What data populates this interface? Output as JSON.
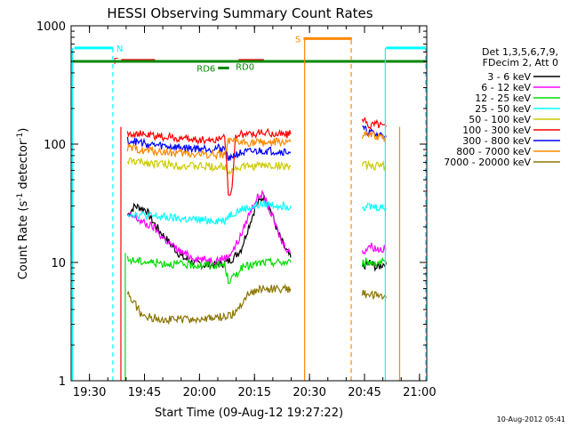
{
  "chart_data": {
    "type": "line",
    "title": "HESSI Observing Summary Count Rates",
    "xlabel": "Start Time (09-Aug-12 19:27:22)",
    "ylabel_main": "Count Rate (s",
    "ylabel_sup1": "-1",
    "ylabel_mid": " detector",
    "ylabel_sup2": "-1",
    "ylabel_end": ")",
    "yscale": "log",
    "ylim": [
      1,
      1000
    ],
    "xlim_min": [
      -2.37,
      94.6
    ],
    "x_ticks": [
      {
        "m": 2.63,
        "label": "19:30"
      },
      {
        "m": 17.63,
        "label": "19:45"
      },
      {
        "m": 32.63,
        "label": "20:00"
      },
      {
        "m": 47.63,
        "label": "20:15"
      },
      {
        "m": 62.63,
        "label": "20:30"
      },
      {
        "m": 77.63,
        "label": "20:45"
      },
      {
        "m": 92.63,
        "label": "21:00"
      }
    ],
    "y_ticks": [
      {
        "v": 1,
        "label": "1"
      },
      {
        "v": 10,
        "label": "10"
      },
      {
        "v": 100,
        "label": "100"
      },
      {
        "v": 1000,
        "label": "1000"
      }
    ],
    "legend_header": [
      "Det 1,3,5,6,7,9,",
      "FDecim 2, Att 0"
    ],
    "legend_position": "right",
    "series": [
      {
        "name": "3 - 6 keV",
        "color": "#000000",
        "segments": [
          [
            [
              13.0,
              25
            ],
            [
              15,
              30
            ],
            [
              18,
              28
            ],
            [
              20,
              22
            ],
            [
              22,
              18
            ],
            [
              25,
              14
            ],
            [
              28,
              11
            ],
            [
              31,
              10
            ],
            [
              34,
              9.5
            ],
            [
              37,
              9.5
            ],
            [
              40,
              10
            ],
            [
              42,
              11
            ],
            [
              44,
              13
            ],
            [
              46,
              20
            ],
            [
              48,
              30
            ],
            [
              50,
              36
            ],
            [
              52,
              28
            ],
            [
              54,
              18
            ],
            [
              56,
              13
            ],
            [
              57.5,
              11
            ]
          ],
          [
            [
              77.0,
              9
            ],
            [
              79,
              10
            ],
            [
              81,
              9
            ],
            [
              83.5,
              10
            ]
          ]
        ]
      },
      {
        "name": "6 - 12 keV",
        "color": "#ff00ff",
        "segments": [
          [
            [
              13.0,
              25
            ],
            [
              15,
              24
            ],
            [
              18,
              21
            ],
            [
              20,
              20
            ],
            [
              22,
              17
            ],
            [
              25,
              14
            ],
            [
              28,
              12
            ],
            [
              31,
              11
            ],
            [
              34,
              10.5
            ],
            [
              37,
              10.5
            ],
            [
              40,
              11
            ],
            [
              42,
              13
            ],
            [
              44,
              17
            ],
            [
              46,
              25
            ],
            [
              48,
              34
            ],
            [
              49.5,
              38
            ],
            [
              51,
              32
            ],
            [
              53,
              22
            ],
            [
              55,
              15
            ],
            [
              57.5,
              12
            ]
          ],
          [
            [
              77.0,
              12
            ],
            [
              79,
              14
            ],
            [
              81,
              13
            ],
            [
              83.5,
              13
            ]
          ]
        ]
      },
      {
        "name": "12 - 25 keV",
        "color": "#00dd00",
        "segments": [
          [
            [
              13.0,
              10.5
            ],
            [
              20,
              10
            ],
            [
              30,
              9.5
            ],
            [
              39.5,
              9.5
            ],
            [
              40.5,
              7
            ],
            [
              42,
              7.5
            ],
            [
              44,
              9
            ],
            [
              50,
              10
            ],
            [
              57.5,
              10
            ]
          ],
          [
            [
              77.0,
              10
            ],
            [
              83.5,
              10
            ]
          ]
        ]
      },
      {
        "name": "25 - 50 keV",
        "color": "#00ffff",
        "segments": [
          [
            [
              13.0,
              26
            ],
            [
              20,
              24.5
            ],
            [
              30,
              23
            ],
            [
              39.5,
              22.5
            ],
            [
              40.5,
              25
            ],
            [
              44,
              28
            ],
            [
              50,
              31
            ],
            [
              57.5,
              30
            ]
          ],
          [
            [
              77.0,
              30
            ],
            [
              83.5,
              29
            ]
          ]
        ]
      },
      {
        "name": "50 - 100 keV",
        "color": "#cccc00",
        "segments": [
          [
            [
              13.0,
              72
            ],
            [
              20,
              69
            ],
            [
              30,
              65
            ],
            [
              39.5,
              64
            ],
            [
              40.5,
              60
            ],
            [
              44,
              64
            ],
            [
              50,
              66
            ],
            [
              57.5,
              65
            ]
          ],
          [
            [
              77.0,
              66
            ],
            [
              83.5,
              65
            ]
          ]
        ]
      },
      {
        "name": "100 - 300 keV",
        "color": "#ff0000",
        "segments": [
          [
            [
              13.0,
              125
            ],
            [
              20,
              117
            ],
            [
              30,
              110
            ],
            [
              37,
              108
            ],
            [
              39.5,
              120
            ],
            [
              40.5,
              40
            ],
            [
              41.5,
              40
            ],
            [
              42.5,
              120
            ],
            [
              50,
              124
            ],
            [
              57.5,
              121
            ]
          ],
          [
            [
              77.0,
              160
            ],
            [
              79,
              145
            ],
            [
              81,
              150
            ],
            [
              83.5,
              140
            ]
          ]
        ]
      },
      {
        "name": "300 - 800 keV",
        "color": "#0000ff",
        "segments": [
          [
            [
              13.0,
              108
            ],
            [
              20,
              98
            ],
            [
              30,
              92
            ],
            [
              39.5,
              92
            ],
            [
              40.5,
              78
            ],
            [
              44,
              84
            ],
            [
              50,
              88
            ],
            [
              57.5,
              86
            ]
          ],
          [
            [
              77.0,
              135
            ],
            [
              79,
              125
            ],
            [
              81,
              120
            ],
            [
              83.5,
              118
            ]
          ]
        ]
      },
      {
        "name": "800 - 7000 keV",
        "color": "#ff8800",
        "segments": [
          [
            [
              13.0,
              92
            ],
            [
              20,
              87
            ],
            [
              30,
              82
            ],
            [
              39.5,
              82
            ],
            [
              40.5,
              104
            ],
            [
              44,
              103
            ],
            [
              50,
              103
            ],
            [
              57.5,
              104
            ]
          ],
          [
            [
              77.0,
              120
            ],
            [
              83.5,
              113
            ]
          ]
        ]
      },
      {
        "name": "7000 - 20000 keV",
        "color": "#8b7500",
        "segments": [
          [
            [
              13.0,
              5.5
            ],
            [
              15,
              4.5
            ],
            [
              17,
              3.5
            ],
            [
              25,
              3.3
            ],
            [
              35,
              3.3
            ],
            [
              39.5,
              3.5
            ],
            [
              41,
              3.5
            ],
            [
              43,
              4
            ],
            [
              46,
              5.5
            ],
            [
              50,
              6
            ],
            [
              57.5,
              6
            ]
          ],
          [
            [
              77.0,
              5.5
            ],
            [
              83.5,
              5
            ]
          ]
        ]
      }
    ],
    "bands": [
      {
        "label": "N",
        "color": "#00ffff",
        "x0": -1.5,
        "x1": 9.0,
        "y": 650,
        "label_side": "right"
      },
      {
        "label": "F",
        "color": "#ff0000",
        "x0": 11.3,
        "x1": 20.5,
        "y": 510,
        "label_side": "left"
      },
      {
        "label": "F",
        "color": "#ff0000",
        "x0": 43.3,
        "x1": 50.2,
        "y": 510,
        "label_side": "none"
      },
      {
        "label": "S",
        "color": "#ff8800",
        "x0": 61.0,
        "x1": 74.2,
        "y": 780,
        "label_side": "left"
      },
      {
        "label": "",
        "color": "#00ffff",
        "x0": 83.5,
        "x1": 94.3,
        "y": 650,
        "label_side": "none"
      },
      {
        "label": "",
        "color": "#008800",
        "x0": -2.2,
        "x1": 94.6,
        "y": 500,
        "label_side": "none"
      },
      {
        "label": "RD6",
        "color": "#008800",
        "x0": 37.7,
        "x1": 40.7,
        "y": 440,
        "label_side": "left"
      },
      {
        "label": "RD0",
        "color": "#008800",
        "x0": 0,
        "x1": 0,
        "y": 455,
        "label_side": "anchor",
        "anchor_x": 42.5
      }
    ],
    "vlines": [
      {
        "x": -2.0,
        "color": "#00ffff",
        "dash": false,
        "y0": 1,
        "y1": 650
      },
      {
        "x": 9.0,
        "color": "#00ffff",
        "dash": true,
        "y0": 1,
        "y1": 650
      },
      {
        "x": 11.2,
        "color": "#ff0000",
        "dash": false,
        "y0": 1,
        "y1": 140
      },
      {
        "x": 12.4,
        "color": "#00dd00",
        "dash": false,
        "y0": 1,
        "y1": 12
      },
      {
        "x": 61.3,
        "color": "#ff8800",
        "dash": false,
        "y0": 1,
        "y1": 780
      },
      {
        "x": 74.0,
        "color": "#ff8800",
        "dash": true,
        "y0": 1,
        "y1": 780
      },
      {
        "x": 83.3,
        "color": "#00ffff",
        "dash": false,
        "y0": 1,
        "y1": 650
      },
      {
        "x": 87.2,
        "color": "#ff8800",
        "dash": false,
        "y0": 1,
        "y1": 140
      },
      {
        "x": 94.3,
        "color": "#00ffff",
        "dash": true,
        "y0": 1,
        "y1": 650
      }
    ]
  },
  "footer_timestamp": "10-Aug-2012 05:41"
}
